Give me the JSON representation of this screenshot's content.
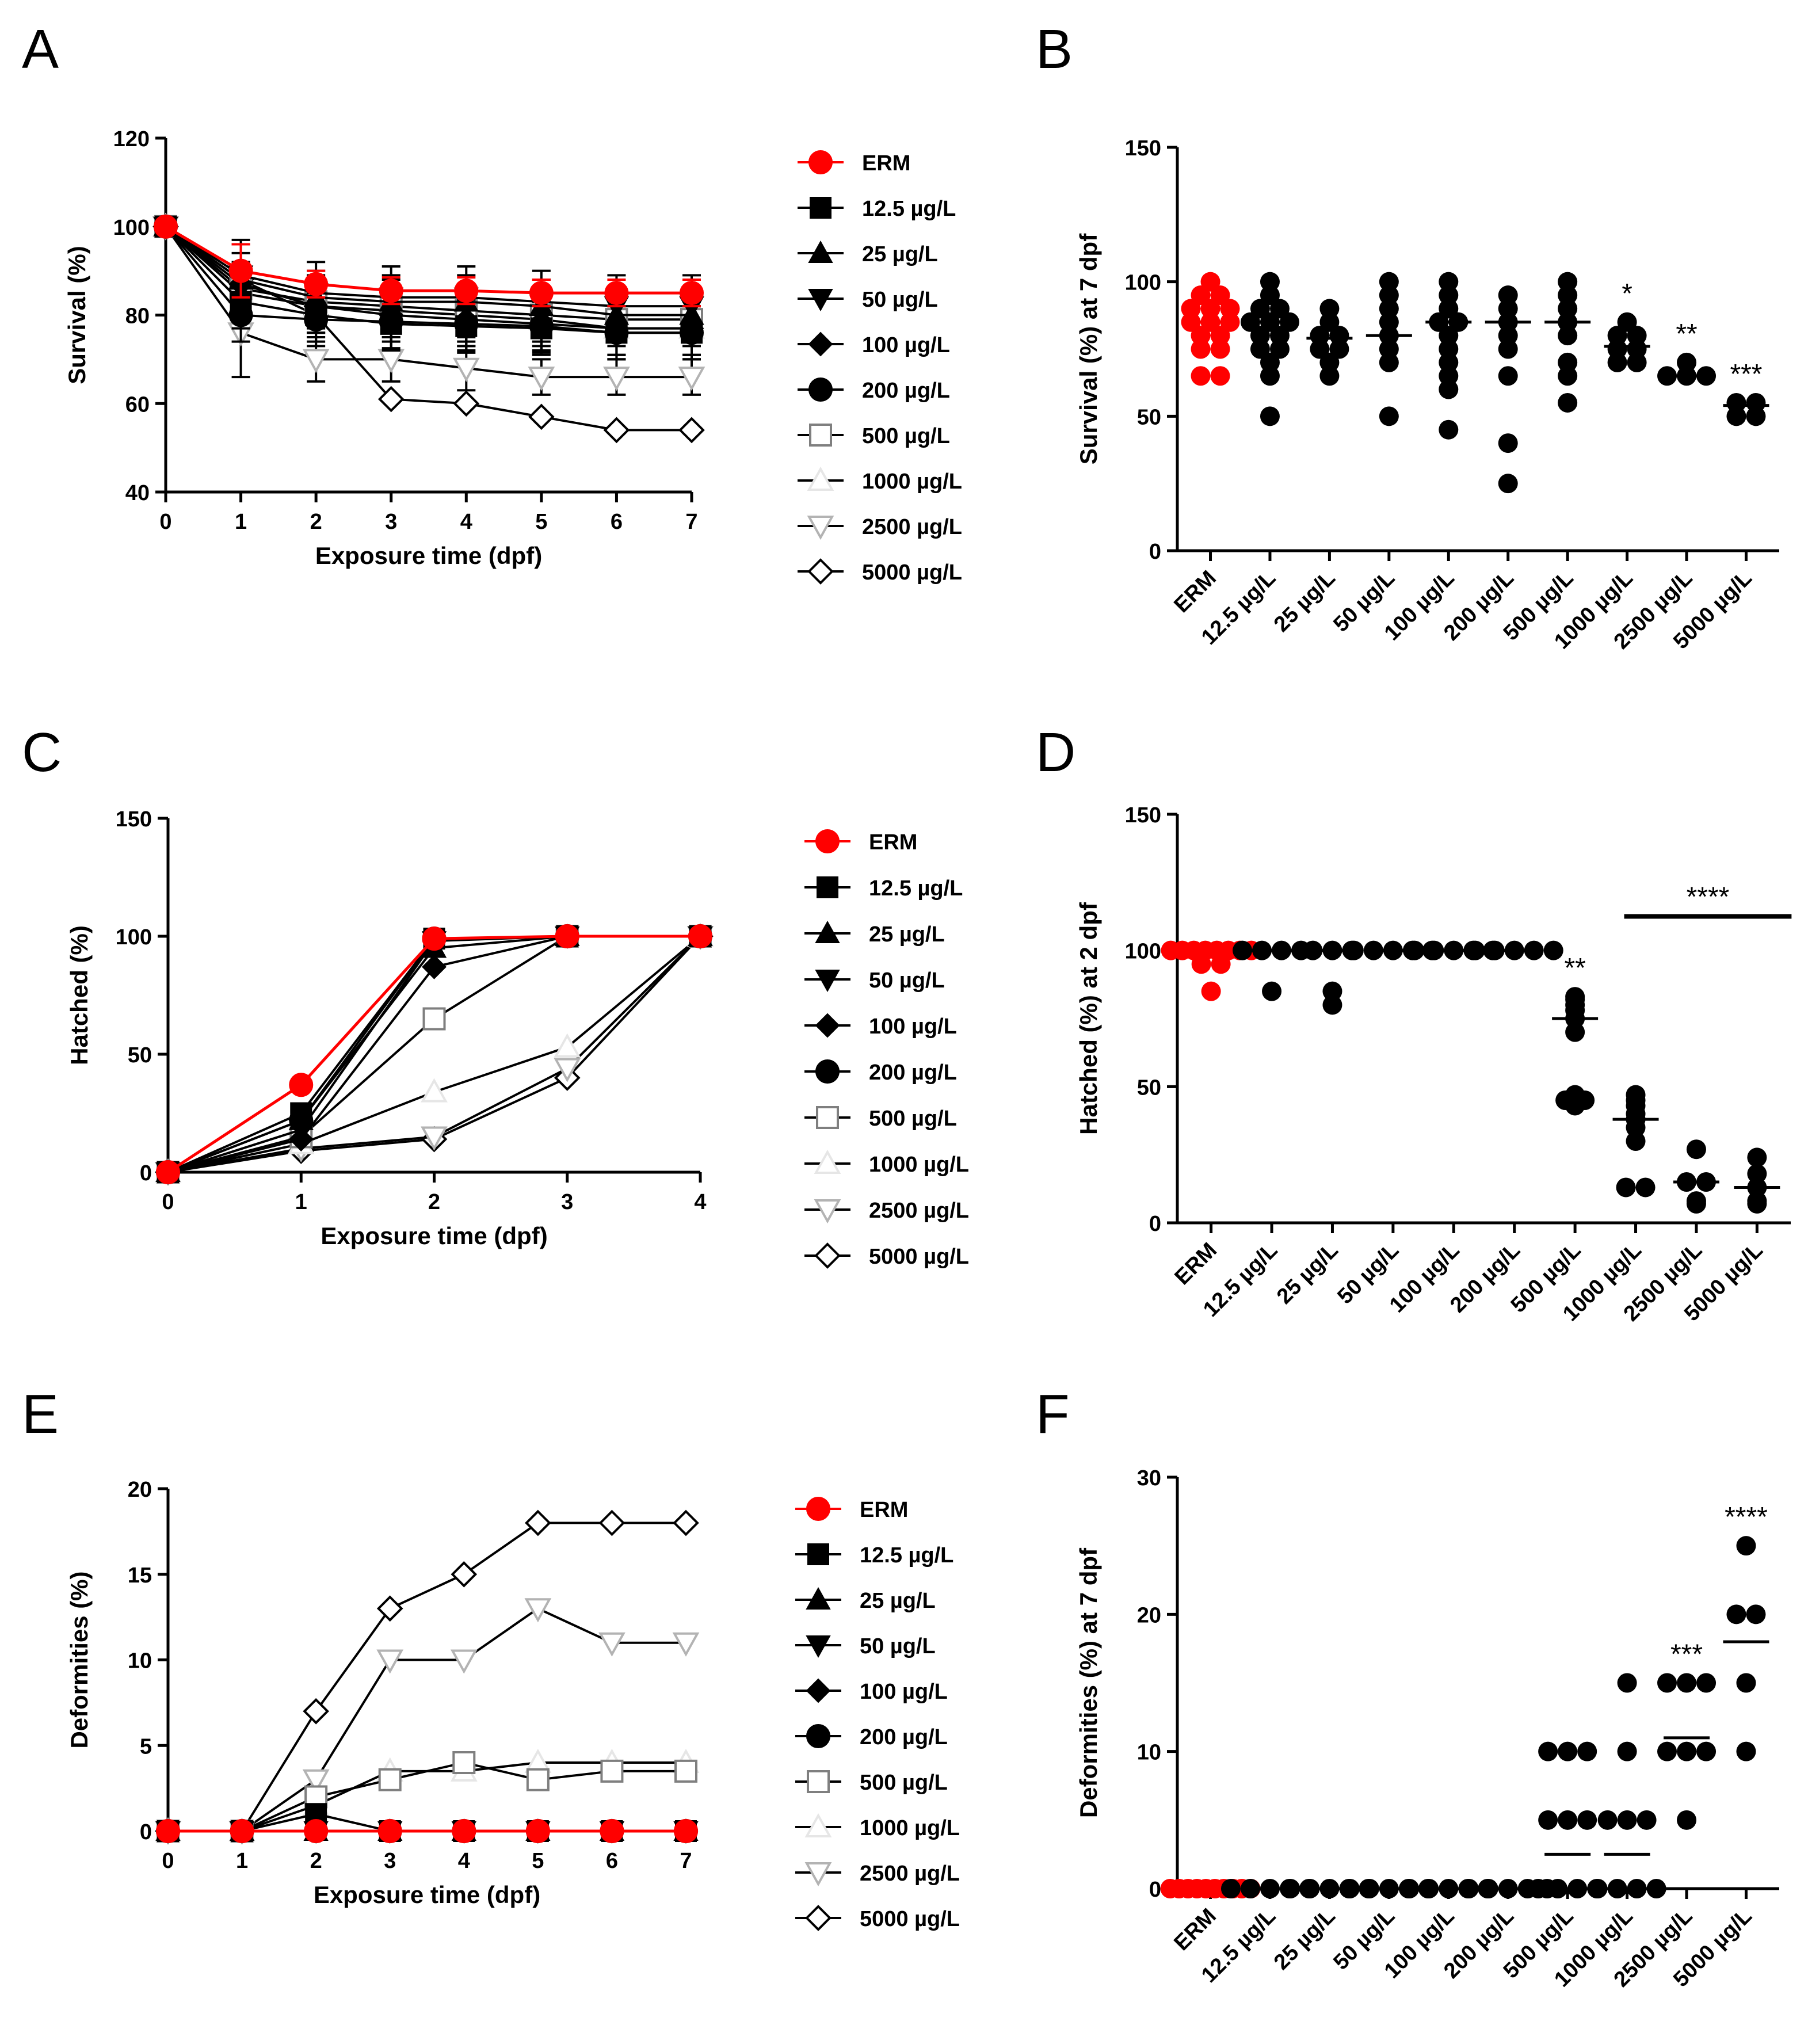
{
  "panels": {
    "A": {
      "letter": "A"
    },
    "B": {
      "letter": "B"
    },
    "C": {
      "letter": "C"
    },
    "D": {
      "letter": "D"
    },
    "E": {
      "letter": "E"
    },
    "F": {
      "letter": "F"
    }
  },
  "groups": [
    "ERM",
    "12.5 µg/L",
    "25 µg/L",
    "50 µg/L",
    "100 µg/L",
    "200 µg/L",
    "500 µg/L",
    "1000 µg/L",
    "2500 µg/L",
    "5000 µg/L"
  ],
  "colors": {
    "erm": "#ff0000",
    "black": "#000000",
    "gray": "#7f7f7f",
    "lightgray": "#b3b3b3"
  },
  "chart_data": [
    {
      "id": "A",
      "type": "line",
      "xlabel": "Exposure time (dpf)",
      "ylabel": "Survival (%)",
      "x": [
        0,
        1,
        2,
        3,
        4,
        5,
        6,
        7
      ],
      "xticks": [
        0,
        1,
        2,
        3,
        4,
        5,
        6,
        7
      ],
      "ylim": [
        40,
        120
      ],
      "yticks": [
        40,
        60,
        80,
        100,
        120
      ],
      "series": [
        {
          "name": "ERM",
          "values": [
            100,
            90,
            87,
            85.5,
            85.5,
            85,
            85,
            85
          ],
          "err": [
            0,
            6,
            3,
            3,
            3,
            3,
            3,
            3
          ]
        },
        {
          "name": "12.5 µg/L",
          "values": [
            100,
            83,
            80,
            78,
            77.5,
            77,
            76,
            76
          ],
          "err": [
            0,
            6,
            6,
            6,
            6,
            6,
            6,
            6
          ]
        },
        {
          "name": "25 µg/L",
          "values": [
            100,
            88,
            84,
            83,
            83,
            82,
            80,
            80
          ],
          "err": [
            0,
            8,
            6,
            6,
            6,
            6,
            6,
            6
          ]
        },
        {
          "name": "50 µg/L",
          "values": [
            100,
            89,
            85,
            84,
            84,
            83,
            82,
            82
          ],
          "err": [
            0,
            8,
            7,
            7,
            7,
            7,
            7,
            7
          ]
        },
        {
          "name": "100 µg/L",
          "values": [
            100,
            87,
            82,
            80,
            79,
            78,
            77,
            77
          ],
          "err": [
            0,
            7,
            6,
            6,
            6,
            6,
            6,
            6
          ]
        },
        {
          "name": "200 µg/L",
          "values": [
            100,
            80,
            79,
            78.5,
            78,
            77.5,
            76,
            76
          ],
          "err": [
            0,
            6,
            6,
            6,
            6,
            6,
            6,
            6
          ]
        },
        {
          "name": "500 µg/L",
          "values": [
            100,
            86,
            83,
            82,
            81,
            80,
            79,
            79
          ],
          "err": [
            0,
            6,
            6,
            6,
            6,
            6,
            6,
            6
          ]
        },
        {
          "name": "1000 µg/L",
          "values": [
            100,
            85,
            82,
            81,
            80,
            79,
            77,
            77
          ],
          "err": [
            0,
            6,
            6,
            6,
            6,
            6,
            6,
            6
          ]
        },
        {
          "name": "2500 µg/L",
          "values": [
            100,
            76,
            70,
            70,
            68,
            66,
            66,
            66
          ],
          "err": [
            0,
            10,
            5,
            5,
            5,
            4,
            4,
            4
          ]
        },
        {
          "name": "5000 µg/L",
          "values": [
            100,
            88,
            80,
            61,
            60,
            57,
            54,
            54
          ],
          "err": [
            0,
            0,
            0,
            0,
            0,
            0,
            0,
            0
          ]
        }
      ]
    },
    {
      "id": "B",
      "type": "scatter",
      "ylabel": "Survival (%) at 7 dpf",
      "categories": [
        "ERM",
        "12.5 µg/L",
        "25 µg/L",
        "50 µg/L",
        "100 µg/L",
        "200 µg/L",
        "500 µg/L",
        "1000 µg/L",
        "2500 µg/L",
        "5000 µg/L"
      ],
      "ylim": [
        0,
        150
      ],
      "yticks": [
        0,
        50,
        100,
        150
      ],
      "points": [
        [
          100,
          95,
          95,
          90,
          90,
          90,
          85,
          85,
          85,
          80,
          80,
          75,
          75,
          65,
          65
        ],
        [
          100,
          95,
          90,
          90,
          85,
          85,
          85,
          80,
          80,
          75,
          75,
          70,
          65,
          50
        ],
        [
          90,
          85,
          80,
          80,
          75,
          75,
          70,
          65
        ],
        [
          100,
          95,
          90,
          85,
          80,
          75,
          70,
          50
        ],
        [
          100,
          95,
          90,
          85,
          85,
          80,
          75,
          70,
          65,
          60,
          45
        ],
        [
          95,
          90,
          85,
          80,
          75,
          65,
          40,
          25
        ],
        [
          100,
          95,
          90,
          85,
          80,
          70,
          65,
          55
        ],
        [
          85,
          80,
          80,
          75,
          75,
          70,
          70
        ],
        [
          70,
          65,
          65,
          65
        ],
        [
          55,
          55,
          50,
          50
        ]
      ],
      "means": [
        85,
        85,
        79,
        80,
        85,
        85,
        85,
        76,
        65,
        54
      ],
      "annotations": [
        {
          "index": 7,
          "text": "*"
        },
        {
          "index": 8,
          "text": "**"
        },
        {
          "index": 9,
          "text": "***"
        }
      ]
    },
    {
      "id": "C",
      "type": "line",
      "xlabel": "Exposure time (dpf)",
      "ylabel": "Hatched (%)",
      "x": [
        0,
        1,
        2,
        3,
        4
      ],
      "xticks": [
        0,
        1,
        2,
        3,
        4
      ],
      "ylim": [
        0,
        150
      ],
      "yticks": [
        0,
        50,
        100,
        150
      ],
      "series": [
        {
          "name": "ERM",
          "values": [
            0,
            37,
            99,
            100,
            100
          ]
        },
        {
          "name": "12.5 µg/L",
          "values": [
            0,
            25,
            99,
            100,
            100
          ]
        },
        {
          "name": "25 µg/L",
          "values": [
            0,
            22,
            95,
            100,
            100
          ]
        },
        {
          "name": "50 µg/L",
          "values": [
            0,
            18,
            98,
            100,
            100
          ]
        },
        {
          "name": "100 µg/L",
          "values": [
            0,
            14,
            87,
            100,
            100
          ]
        },
        {
          "name": "200 µg/L",
          "values": [
            0,
            22,
            99,
            100,
            100
          ]
        },
        {
          "name": "500 µg/L",
          "values": [
            0,
            15,
            65,
            100,
            100
          ]
        },
        {
          "name": "1000 µg/L",
          "values": [
            0,
            12,
            34,
            53,
            100
          ]
        },
        {
          "name": "2500 µg/L",
          "values": [
            0,
            10,
            15,
            44,
            100
          ]
        },
        {
          "name": "5000 µg/L",
          "values": [
            0,
            9,
            14,
            40,
            100
          ]
        }
      ]
    },
    {
      "id": "D",
      "type": "scatter",
      "ylabel": "Hatched (%) at 2 dpf",
      "categories": [
        "ERM",
        "12.5 µg/L",
        "25 µg/L",
        "50 µg/L",
        "100 µg/L",
        "200 µg/L",
        "500 µg/L",
        "1000 µg/L",
        "2500 µg/L",
        "5000 µg/L"
      ],
      "ylim": [
        0,
        150
      ],
      "yticks": [
        0,
        50,
        100,
        150
      ],
      "points": [
        [
          100,
          100,
          100,
          100,
          100,
          100,
          100,
          100,
          95,
          95,
          85
        ],
        [
          100,
          100,
          100,
          100,
          85
        ],
        [
          100,
          100,
          100,
          85,
          80
        ],
        [
          100,
          100,
          100,
          100,
          100
        ],
        [
          100,
          100,
          100,
          100,
          100
        ],
        [
          100,
          100,
          100,
          100,
          100
        ],
        [
          83,
          82,
          80,
          78,
          75,
          70,
          47,
          45,
          45,
          43
        ],
        [
          47,
          45,
          43,
          40,
          38,
          35,
          30,
          13,
          13
        ],
        [
          27,
          15,
          15,
          8,
          7
        ],
        [
          24,
          18,
          13,
          8,
          7
        ]
      ],
      "means": [
        100,
        100,
        100,
        100,
        100,
        100,
        75,
        38,
        15,
        13
      ],
      "annotations": [
        {
          "index": 6,
          "text": "**"
        },
        {
          "bracket": [
            7,
            9
          ],
          "text": "****"
        }
      ]
    },
    {
      "id": "E",
      "type": "line",
      "xlabel": "Exposure time (dpf)",
      "ylabel": "Deformities (%)",
      "x": [
        0,
        1,
        2,
        3,
        4,
        5,
        6,
        7
      ],
      "xticks": [
        0,
        1,
        2,
        3,
        4,
        5,
        6,
        7
      ],
      "ylim": [
        0,
        20
      ],
      "yticks": [
        0,
        5,
        10,
        15,
        20
      ],
      "series": [
        {
          "name": "ERM",
          "values": [
            0,
            0,
            0,
            0,
            0,
            0,
            0,
            0
          ]
        },
        {
          "name": "12.5 µg/L",
          "values": [
            0,
            0,
            1,
            0,
            0,
            0,
            0,
            0
          ]
        },
        {
          "name": "25 µg/L",
          "values": [
            0,
            0,
            0,
            0,
            0,
            0,
            0,
            0
          ]
        },
        {
          "name": "50 µg/L",
          "values": [
            0,
            0,
            0,
            0,
            0,
            0,
            0,
            0
          ]
        },
        {
          "name": "100 µg/L",
          "values": [
            0,
            0,
            0,
            0,
            0,
            0,
            0,
            0
          ]
        },
        {
          "name": "200 µg/L",
          "values": [
            0,
            0,
            0,
            0,
            0,
            0,
            0,
            0
          ]
        },
        {
          "name": "500 µg/L",
          "values": [
            0,
            0,
            2,
            3,
            4,
            3,
            3.5,
            3.5
          ]
        },
        {
          "name": "1000 µg/L",
          "values": [
            0,
            0,
            1.5,
            3.5,
            3.5,
            4,
            4,
            4
          ]
        },
        {
          "name": "2500 µg/L",
          "values": [
            0,
            0,
            3,
            10,
            10,
            13,
            11,
            11
          ]
        },
        {
          "name": "5000 µg/L",
          "values": [
            0,
            0,
            7,
            13,
            15,
            18,
            18,
            18
          ]
        }
      ]
    },
    {
      "id": "F",
      "type": "scatter",
      "ylabel": "Deformities (%) at 7 dpf",
      "categories": [
        "ERM",
        "12.5 µg/L",
        "25 µg/L",
        "50 µg/L",
        "100 µg/L",
        "200 µg/L",
        "500 µg/L",
        "1000 µg/L",
        "2500 µg/L",
        "5000 µg/L"
      ],
      "ylim": [
        0,
        30
      ],
      "yticks": [
        0,
        10,
        20,
        30
      ],
      "points": [
        [
          0,
          0,
          0,
          0,
          0,
          0,
          0,
          0,
          0,
          0
        ],
        [
          0,
          0,
          0,
          0,
          0
        ],
        [
          0,
          0,
          0,
          0,
          0
        ],
        [
          0,
          0,
          0,
          0,
          0
        ],
        [
          0,
          0,
          0,
          0,
          0
        ],
        [
          0,
          0,
          0,
          0,
          0
        ],
        [
          10,
          10,
          10,
          5,
          5,
          5,
          0,
          0,
          0,
          0
        ],
        [
          15,
          10,
          5,
          5,
          5,
          0,
          0,
          0,
          0
        ],
        [
          15,
          15,
          15,
          10,
          10,
          10,
          5
        ],
        [
          25,
          20,
          20,
          15,
          10
        ]
      ],
      "means": [
        0,
        0,
        0,
        0,
        0,
        0,
        2.5,
        2.5,
        11,
        18
      ],
      "annotations": [
        {
          "index": 8,
          "text": "***"
        },
        {
          "index": 9,
          "text": "****"
        }
      ]
    }
  ]
}
